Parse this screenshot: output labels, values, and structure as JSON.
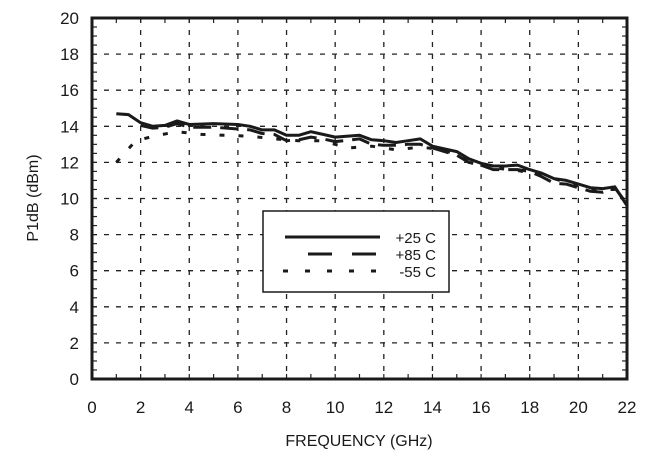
{
  "chart_data": {
    "type": "line",
    "title": "",
    "xlabel": "FREQUENCY (GHz)",
    "ylabel": "P1dB (dBm)",
    "xlim": [
      0,
      22
    ],
    "ylim": [
      0,
      20
    ],
    "xticks": [
      0,
      2,
      4,
      6,
      8,
      10,
      12,
      14,
      16,
      18,
      20,
      22
    ],
    "yticks": [
      0,
      2,
      4,
      6,
      8,
      10,
      12,
      14,
      16,
      18,
      20
    ],
    "grid": true,
    "legend_position": "center",
    "series": [
      {
        "name": "+25 C",
        "style": "solid",
        "x": [
          1,
          1.5,
          2,
          2.5,
          3,
          3.5,
          4,
          5,
          6,
          6.5,
          7,
          7.5,
          8,
          8.5,
          9,
          9.5,
          10,
          11,
          11.5,
          12,
          12.5,
          13,
          13.5,
          14,
          15,
          15.5,
          16,
          16.5,
          17,
          17.5,
          18,
          18.5,
          19,
          19.5,
          20,
          20.5,
          21,
          21.5,
          22
        ],
        "y": [
          14.7,
          14.65,
          14.2,
          14.0,
          14.05,
          14.3,
          14.1,
          14.15,
          14.1,
          14.0,
          13.8,
          13.8,
          13.5,
          13.5,
          13.7,
          13.55,
          13.4,
          13.5,
          13.25,
          13.2,
          13.1,
          13.2,
          13.3,
          12.9,
          12.6,
          12.2,
          11.95,
          11.8,
          11.8,
          11.85,
          11.6,
          11.4,
          11.1,
          11.0,
          10.8,
          10.6,
          10.55,
          10.65,
          9.6
        ]
      },
      {
        "name": "+85 C",
        "style": "dashed",
        "x": [
          2,
          2.5,
          3,
          3.5,
          4,
          5,
          6,
          6.5,
          7,
          7.5,
          8,
          8.5,
          9,
          9.5,
          10,
          11,
          11.5,
          12,
          12.5,
          13,
          13.5,
          14,
          15,
          15.5,
          16,
          16.5,
          17,
          17.5,
          18,
          18.5,
          19,
          19.5,
          20,
          20.5,
          21,
          21.5,
          22
        ],
        "y": [
          14.05,
          13.9,
          13.95,
          14.15,
          13.95,
          13.95,
          13.85,
          13.8,
          13.6,
          13.55,
          13.2,
          13.25,
          13.4,
          13.3,
          13.15,
          13.3,
          13.0,
          12.95,
          12.95,
          13.0,
          13.0,
          12.8,
          12.4,
          12.0,
          11.85,
          11.6,
          11.6,
          11.6,
          11.5,
          11.2,
          10.85,
          10.8,
          10.6,
          10.4,
          10.35,
          10.6,
          9.7
        ]
      },
      {
        "name": "-55 C",
        "style": "dotted",
        "x": [
          1,
          1.8,
          2.7,
          3.5,
          4.5,
          5.5,
          6.5,
          7.5,
          8.5,
          9.5,
          10.5,
          11.5,
          12.5,
          13.5,
          14.5,
          15.5,
          16.5,
          17.5,
          18.5,
          19.5,
          20.5,
          21.5
        ],
        "y": [
          12.0,
          13.2,
          13.5,
          13.7,
          13.55,
          13.5,
          13.45,
          13.3,
          13.2,
          13.2,
          12.8,
          12.9,
          12.7,
          12.85,
          12.7,
          12.1,
          11.7,
          11.55,
          11.3,
          10.9,
          10.5,
          10.5
        ]
      }
    ]
  },
  "labels": {
    "xlabel": "FREQUENCY (GHz)",
    "ylabel": "P1dB (dBm)"
  },
  "legend": {
    "items": [
      {
        "label": "+25 C",
        "style": "solid"
      },
      {
        "label": "+85 C",
        "style": "dashed"
      },
      {
        "label": "-55 C",
        "style": "dotted"
      }
    ]
  }
}
